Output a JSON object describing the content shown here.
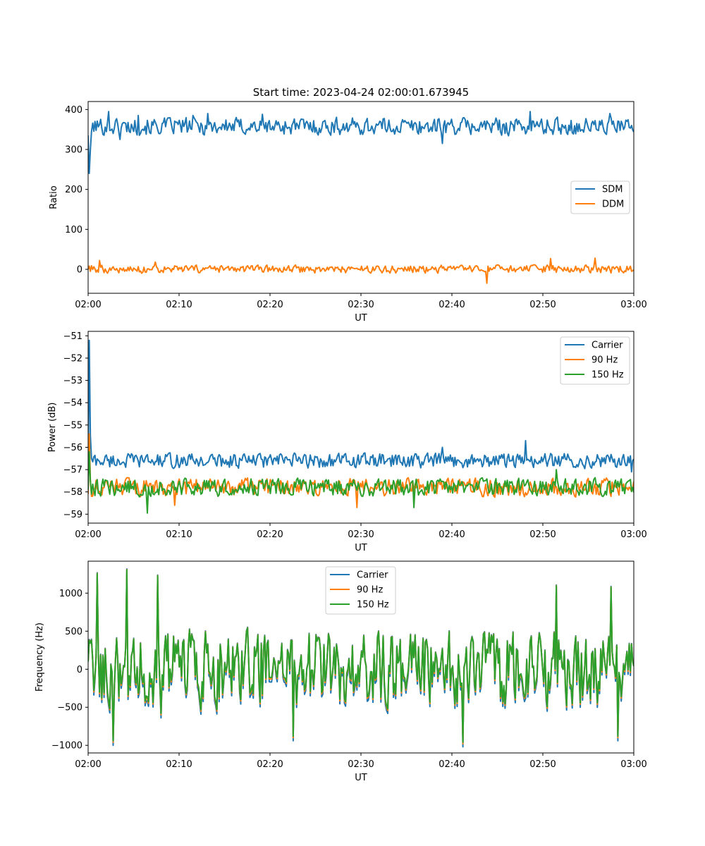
{
  "title": "Start time: 2023-04-24 02:00:01.673945",
  "colors": {
    "blue": "#1f77b4",
    "orange": "#ff7f0e",
    "green": "#2ca02c"
  },
  "chart_data": [
    {
      "type": "line",
      "title": "Start time: 2023-04-24 02:00:01.673945",
      "xlabel": "UT",
      "ylabel": "Ratio",
      "xticks": [
        "02:00",
        "02:10",
        "02:20",
        "02:30",
        "02:40",
        "02:50",
        "03:00"
      ],
      "xlim_minutes": [
        0,
        60
      ],
      "ylim": [
        -60,
        420
      ],
      "yticks": [
        0,
        100,
        200,
        300,
        400
      ],
      "legend_position": "center-right",
      "series": [
        {
          "name": "SDM",
          "color": "#1f77b4",
          "baseline": 358,
          "amplitude": 20,
          "start_values": [
            335,
            240,
            300,
            345
          ],
          "extremes": [
            [
              2.3,
              395
            ],
            [
              3.5,
              325
            ],
            [
              5.5,
              385
            ],
            [
              11.5,
              385
            ],
            [
              13.2,
              390
            ],
            [
              19.2,
              388
            ],
            [
              39.0,
              315
            ],
            [
              48.6,
              395
            ],
            [
              57.4,
              390
            ],
            [
              59.8,
              360
            ]
          ]
        },
        {
          "name": "DDM",
          "color": "#ff7f0e",
          "baseline": 0,
          "amplitude": 9,
          "start_values": [
            0,
            8,
            -5
          ],
          "extremes": [
            [
              1.2,
              22
            ],
            [
              7.4,
              18
            ],
            [
              43.8,
              -35
            ],
            [
              50.8,
              27
            ],
            [
              55.8,
              28
            ],
            [
              59.8,
              -5
            ]
          ]
        }
      ]
    },
    {
      "type": "line",
      "title": "",
      "xlabel": "UT",
      "ylabel": "Power (dB)",
      "xticks": [
        "02:00",
        "02:10",
        "02:20",
        "02:30",
        "02:40",
        "02:50",
        "03:00"
      ],
      "xlim_minutes": [
        0,
        60
      ],
      "ylim": [
        -59.4,
        -50.8
      ],
      "yticks": [
        -59,
        -58,
        -57,
        -56,
        -55,
        -54,
        -53,
        -52,
        -51
      ],
      "legend_position": "top-right",
      "series": [
        {
          "name": "Carrier",
          "color": "#1f77b4",
          "baseline": -56.6,
          "amplitude": 0.3,
          "start_values": [
            -57.2,
            -51.2,
            -55.5,
            -56.5
          ],
          "extremes": [
            [
              39.0,
              -56.0
            ],
            [
              48.1,
              -55.7
            ],
            [
              59.8,
              -57.1
            ]
          ]
        },
        {
          "name": "90 Hz",
          "color": "#ff7f0e",
          "baseline": -57.8,
          "amplitude": 0.35,
          "start_values": [
            -58.1,
            -55.4,
            -57.5,
            -58.2
          ],
          "extremes": [
            [
              9.5,
              -58.6
            ],
            [
              29.5,
              -58.7
            ]
          ]
        },
        {
          "name": "150 Hz",
          "color": "#2ca02c",
          "baseline": -57.8,
          "amplitude": 0.35,
          "start_values": [
            -57.9,
            -56.2,
            -57.5,
            -58.1
          ],
          "extremes": [
            [
              6.5,
              -58.95
            ],
            [
              35.8,
              -58.7
            ],
            [
              51.5,
              -57.0
            ]
          ]
        }
      ]
    },
    {
      "type": "line",
      "title": "",
      "xlabel": "UT",
      "ylabel": "Frequency (Hz)",
      "xticks": [
        "02:00",
        "02:10",
        "02:20",
        "02:30",
        "02:40",
        "02:50",
        "03:00"
      ],
      "xlim_minutes": [
        0,
        60
      ],
      "ylim": [
        -1100,
        1420
      ],
      "yticks": [
        -1000,
        -500,
        0,
        500,
        1000
      ],
      "legend_position": "top-center",
      "series": [
        {
          "name": "Carrier",
          "color": "#1f77b4",
          "offset": -40
        },
        {
          "name": "90 Hz",
          "color": "#ff7f0e",
          "offset": 0
        },
        {
          "name": "150 Hz",
          "color": "#2ca02c",
          "offset": 20,
          "baseline": 0,
          "amplitude": 450,
          "extremes": [
            [
              1.0,
              1260
            ],
            [
              4.3,
              1310
            ],
            [
              7.7,
              1230
            ],
            [
              8.0,
              -600
            ],
            [
              2.8,
              -960
            ],
            [
              22.5,
              -900
            ],
            [
              41.2,
              -980
            ],
            [
              51.5,
              1100
            ],
            [
              57.5,
              1080
            ],
            [
              58.3,
              -900
            ]
          ]
        }
      ]
    }
  ]
}
